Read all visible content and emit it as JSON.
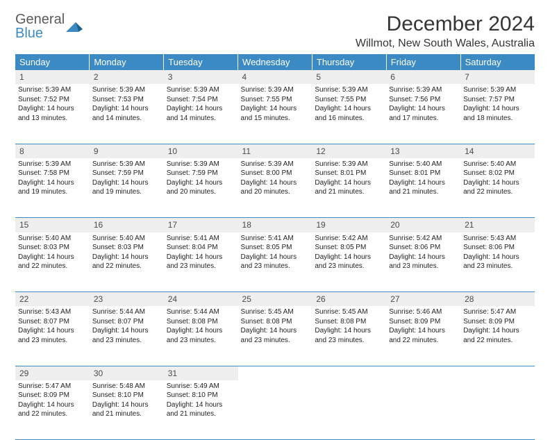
{
  "brand": {
    "line1": "General",
    "line2": "Blue"
  },
  "title": "December 2024",
  "location": "Willmot, New South Wales, Australia",
  "colors": {
    "header_bg": "#3b8ac4",
    "header_text": "#ffffff",
    "daynum_bg": "#eeeeee",
    "border": "#3b8ac4",
    "text": "#222222",
    "logo_gray": "#5a5a5a",
    "logo_blue": "#3b8ac4"
  },
  "fonts": {
    "title_size": 30,
    "location_size": 16,
    "header_size": 13,
    "daynum_size": 12,
    "cell_size": 10
  },
  "weekdays": [
    "Sunday",
    "Monday",
    "Tuesday",
    "Wednesday",
    "Thursday",
    "Friday",
    "Saturday"
  ],
  "weeks": [
    [
      {
        "day": "1",
        "sunrise": "Sunrise: 5:39 AM",
        "sunset": "Sunset: 7:52 PM",
        "daylight1": "Daylight: 14 hours",
        "daylight2": "and 13 minutes."
      },
      {
        "day": "2",
        "sunrise": "Sunrise: 5:39 AM",
        "sunset": "Sunset: 7:53 PM",
        "daylight1": "Daylight: 14 hours",
        "daylight2": "and 14 minutes."
      },
      {
        "day": "3",
        "sunrise": "Sunrise: 5:39 AM",
        "sunset": "Sunset: 7:54 PM",
        "daylight1": "Daylight: 14 hours",
        "daylight2": "and 14 minutes."
      },
      {
        "day": "4",
        "sunrise": "Sunrise: 5:39 AM",
        "sunset": "Sunset: 7:55 PM",
        "daylight1": "Daylight: 14 hours",
        "daylight2": "and 15 minutes."
      },
      {
        "day": "5",
        "sunrise": "Sunrise: 5:39 AM",
        "sunset": "Sunset: 7:55 PM",
        "daylight1": "Daylight: 14 hours",
        "daylight2": "and 16 minutes."
      },
      {
        "day": "6",
        "sunrise": "Sunrise: 5:39 AM",
        "sunset": "Sunset: 7:56 PM",
        "daylight1": "Daylight: 14 hours",
        "daylight2": "and 17 minutes."
      },
      {
        "day": "7",
        "sunrise": "Sunrise: 5:39 AM",
        "sunset": "Sunset: 7:57 PM",
        "daylight1": "Daylight: 14 hours",
        "daylight2": "and 18 minutes."
      }
    ],
    [
      {
        "day": "8",
        "sunrise": "Sunrise: 5:39 AM",
        "sunset": "Sunset: 7:58 PM",
        "daylight1": "Daylight: 14 hours",
        "daylight2": "and 19 minutes."
      },
      {
        "day": "9",
        "sunrise": "Sunrise: 5:39 AM",
        "sunset": "Sunset: 7:59 PM",
        "daylight1": "Daylight: 14 hours",
        "daylight2": "and 19 minutes."
      },
      {
        "day": "10",
        "sunrise": "Sunrise: 5:39 AM",
        "sunset": "Sunset: 7:59 PM",
        "daylight1": "Daylight: 14 hours",
        "daylight2": "and 20 minutes."
      },
      {
        "day": "11",
        "sunrise": "Sunrise: 5:39 AM",
        "sunset": "Sunset: 8:00 PM",
        "daylight1": "Daylight: 14 hours",
        "daylight2": "and 20 minutes."
      },
      {
        "day": "12",
        "sunrise": "Sunrise: 5:39 AM",
        "sunset": "Sunset: 8:01 PM",
        "daylight1": "Daylight: 14 hours",
        "daylight2": "and 21 minutes."
      },
      {
        "day": "13",
        "sunrise": "Sunrise: 5:40 AM",
        "sunset": "Sunset: 8:01 PM",
        "daylight1": "Daylight: 14 hours",
        "daylight2": "and 21 minutes."
      },
      {
        "day": "14",
        "sunrise": "Sunrise: 5:40 AM",
        "sunset": "Sunset: 8:02 PM",
        "daylight1": "Daylight: 14 hours",
        "daylight2": "and 22 minutes."
      }
    ],
    [
      {
        "day": "15",
        "sunrise": "Sunrise: 5:40 AM",
        "sunset": "Sunset: 8:03 PM",
        "daylight1": "Daylight: 14 hours",
        "daylight2": "and 22 minutes."
      },
      {
        "day": "16",
        "sunrise": "Sunrise: 5:40 AM",
        "sunset": "Sunset: 8:03 PM",
        "daylight1": "Daylight: 14 hours",
        "daylight2": "and 22 minutes."
      },
      {
        "day": "17",
        "sunrise": "Sunrise: 5:41 AM",
        "sunset": "Sunset: 8:04 PM",
        "daylight1": "Daylight: 14 hours",
        "daylight2": "and 23 minutes."
      },
      {
        "day": "18",
        "sunrise": "Sunrise: 5:41 AM",
        "sunset": "Sunset: 8:05 PM",
        "daylight1": "Daylight: 14 hours",
        "daylight2": "and 23 minutes."
      },
      {
        "day": "19",
        "sunrise": "Sunrise: 5:42 AM",
        "sunset": "Sunset: 8:05 PM",
        "daylight1": "Daylight: 14 hours",
        "daylight2": "and 23 minutes."
      },
      {
        "day": "20",
        "sunrise": "Sunrise: 5:42 AM",
        "sunset": "Sunset: 8:06 PM",
        "daylight1": "Daylight: 14 hours",
        "daylight2": "and 23 minutes."
      },
      {
        "day": "21",
        "sunrise": "Sunrise: 5:43 AM",
        "sunset": "Sunset: 8:06 PM",
        "daylight1": "Daylight: 14 hours",
        "daylight2": "and 23 minutes."
      }
    ],
    [
      {
        "day": "22",
        "sunrise": "Sunrise: 5:43 AM",
        "sunset": "Sunset: 8:07 PM",
        "daylight1": "Daylight: 14 hours",
        "daylight2": "and 23 minutes."
      },
      {
        "day": "23",
        "sunrise": "Sunrise: 5:44 AM",
        "sunset": "Sunset: 8:07 PM",
        "daylight1": "Daylight: 14 hours",
        "daylight2": "and 23 minutes."
      },
      {
        "day": "24",
        "sunrise": "Sunrise: 5:44 AM",
        "sunset": "Sunset: 8:08 PM",
        "daylight1": "Daylight: 14 hours",
        "daylight2": "and 23 minutes."
      },
      {
        "day": "25",
        "sunrise": "Sunrise: 5:45 AM",
        "sunset": "Sunset: 8:08 PM",
        "daylight1": "Daylight: 14 hours",
        "daylight2": "and 23 minutes."
      },
      {
        "day": "26",
        "sunrise": "Sunrise: 5:45 AM",
        "sunset": "Sunset: 8:08 PM",
        "daylight1": "Daylight: 14 hours",
        "daylight2": "and 23 minutes."
      },
      {
        "day": "27",
        "sunrise": "Sunrise: 5:46 AM",
        "sunset": "Sunset: 8:09 PM",
        "daylight1": "Daylight: 14 hours",
        "daylight2": "and 22 minutes."
      },
      {
        "day": "28",
        "sunrise": "Sunrise: 5:47 AM",
        "sunset": "Sunset: 8:09 PM",
        "daylight1": "Daylight: 14 hours",
        "daylight2": "and 22 minutes."
      }
    ],
    [
      {
        "day": "29",
        "sunrise": "Sunrise: 5:47 AM",
        "sunset": "Sunset: 8:09 PM",
        "daylight1": "Daylight: 14 hours",
        "daylight2": "and 22 minutes."
      },
      {
        "day": "30",
        "sunrise": "Sunrise: 5:48 AM",
        "sunset": "Sunset: 8:10 PM",
        "daylight1": "Daylight: 14 hours",
        "daylight2": "and 21 minutes."
      },
      {
        "day": "31",
        "sunrise": "Sunrise: 5:49 AM",
        "sunset": "Sunset: 8:10 PM",
        "daylight1": "Daylight: 14 hours",
        "daylight2": "and 21 minutes."
      },
      null,
      null,
      null,
      null
    ]
  ]
}
